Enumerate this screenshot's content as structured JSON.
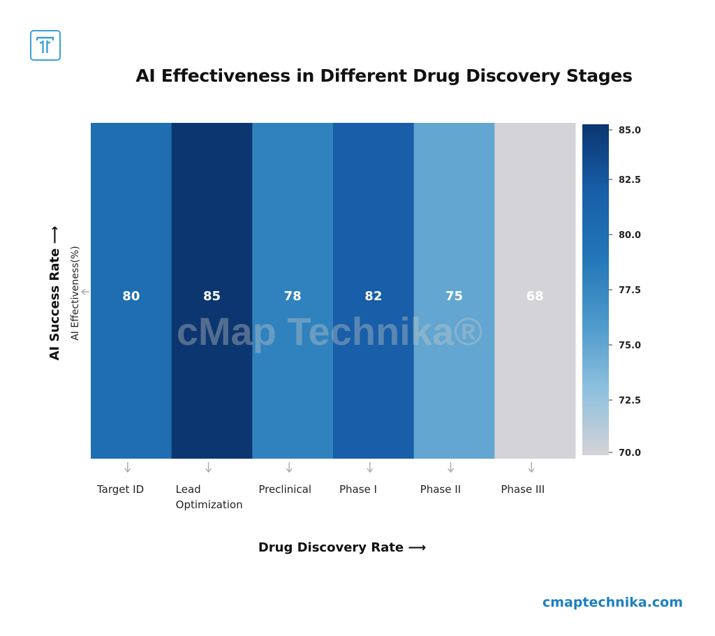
{
  "title": "AI Effectiveness in Different Drug Discovery Stages",
  "xlabel_text": "Drug Discovery Rate ⟶",
  "ylabel_outer": "AI Success Rate ⟶",
  "ylabel_inner": "AI Effectiveness(%)",
  "watermark": "cMap Technika®",
  "website": "cmaptechnika.com",
  "logo_letter": "T",
  "chart_data": {
    "type": "heatmap",
    "title": "AI Effectiveness in Different Drug Discovery Stages",
    "xlabel": "Drug Discovery Rate",
    "ylabel": "AI Effectiveness(%)",
    "categories": [
      "Target ID",
      "Lead Optimization",
      "Preclinical",
      "Phase I",
      "Phase II",
      "Phase III"
    ],
    "values": [
      80,
      85,
      78,
      82,
      75,
      68
    ],
    "colorbar": {
      "min": 70.0,
      "max": 85.0,
      "ticks": [
        "85.0",
        "82.5",
        "80.0",
        "77.5",
        "75.0",
        "72.5",
        "70.0"
      ],
      "colors": [
        "#d4d3d7",
        "#8dc0de",
        "#4c99cb",
        "#2276b7",
        "#185ea8",
        "#0c3670"
      ]
    },
    "grid": false,
    "legend": "colorbar-right"
  }
}
